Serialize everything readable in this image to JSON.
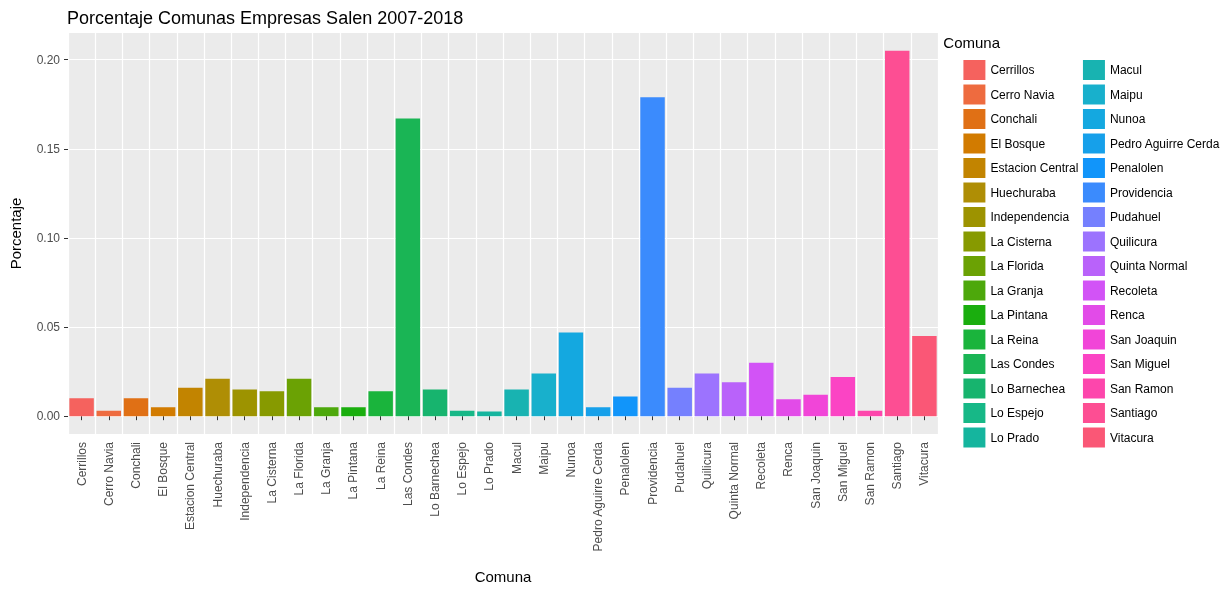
{
  "chart_data": {
    "type": "bar",
    "title": "Porcentaje Comunas Empresas Salen 2007-2018",
    "xlabel": "Comuna",
    "ylabel": "Porcentaje",
    "legend_title": "Comuna",
    "categories": [
      "Cerrillos",
      "Cerro Navia",
      "Conchali",
      "El Bosque",
      "Estacion Central",
      "Huechuraba",
      "Independencia",
      "La Cisterna",
      "La Florida",
      "La Granja",
      "La Pintana",
      "La Reina",
      "Las Condes",
      "Lo Barnechea",
      "Lo Espejo",
      "Lo Prado",
      "Macul",
      "Maipu",
      "Nunoa",
      "Pedro Aguirre Cerda",
      "Penalolen",
      "Providencia",
      "Pudahuel",
      "Quilicura",
      "Quinta Normal",
      "Recoleta",
      "Renca",
      "San Joaquin",
      "San Miguel",
      "San Ramon",
      "Santiago",
      "Vitacura"
    ],
    "stacked": true,
    "series": [
      {
        "name": "Cerrillos",
        "color": "#f5625e",
        "values": [
          0.01,
          null,
          null,
          null,
          null,
          null,
          null,
          null,
          null,
          null,
          null,
          null,
          null,
          null,
          null,
          null,
          null,
          null,
          null,
          null,
          null,
          null,
          null,
          null,
          null,
          null,
          null,
          null,
          null,
          null,
          null,
          null
        ]
      },
      {
        "name": "Cerro Navia",
        "color": "#ee6b3f",
        "values": [
          null,
          0.003,
          null,
          null,
          null,
          null,
          null,
          null,
          null,
          null,
          null,
          null,
          null,
          null,
          null,
          null,
          null,
          null,
          null,
          null,
          null,
          null,
          null,
          null,
          null,
          null,
          null,
          null,
          null,
          null,
          null,
          null
        ]
      },
      {
        "name": "Conchali",
        "color": "#e07015",
        "values": [
          null,
          null,
          0.01,
          null,
          null,
          null,
          null,
          null,
          null,
          null,
          null,
          null,
          null,
          null,
          null,
          null,
          null,
          null,
          null,
          null,
          null,
          null,
          null,
          null,
          null,
          null,
          null,
          null,
          null,
          null,
          null,
          null
        ]
      },
      {
        "name": "El Bosque",
        "color": "#d27b00",
        "values": [
          null,
          null,
          null,
          0.005,
          null,
          null,
          null,
          null,
          null,
          null,
          null,
          null,
          null,
          null,
          null,
          null,
          null,
          null,
          null,
          null,
          null,
          null,
          null,
          null,
          null,
          null,
          null,
          null,
          null,
          null,
          null,
          null
        ]
      },
      {
        "name": "Estacion Central",
        "color": "#c28400",
        "values": [
          null,
          null,
          null,
          null,
          0.016,
          null,
          null,
          null,
          null,
          null,
          null,
          null,
          null,
          null,
          null,
          null,
          null,
          null,
          null,
          null,
          null,
          null,
          null,
          null,
          null,
          null,
          null,
          null,
          null,
          null,
          null,
          null
        ]
      },
      {
        "name": "Huechuraba",
        "color": "#af8e05",
        "values": [
          null,
          null,
          null,
          null,
          null,
          0.021,
          null,
          null,
          null,
          null,
          null,
          null,
          null,
          null,
          null,
          null,
          null,
          null,
          null,
          null,
          null,
          null,
          null,
          null,
          null,
          null,
          null,
          null,
          null,
          null,
          null,
          null
        ]
      },
      {
        "name": "Independencia",
        "color": "#9d9300",
        "values": [
          null,
          null,
          null,
          null,
          null,
          null,
          0.015,
          null,
          null,
          null,
          null,
          null,
          null,
          null,
          null,
          null,
          null,
          null,
          null,
          null,
          null,
          null,
          null,
          null,
          null,
          null,
          null,
          null,
          null,
          null,
          null,
          null
        ]
      },
      {
        "name": "La Cisterna",
        "color": "#879a00",
        "values": [
          null,
          null,
          null,
          null,
          null,
          null,
          null,
          0.014,
          null,
          null,
          null,
          null,
          null,
          null,
          null,
          null,
          null,
          null,
          null,
          null,
          null,
          null,
          null,
          null,
          null,
          null,
          null,
          null,
          null,
          null,
          null,
          null
        ]
      },
      {
        "name": "La Florida",
        "color": "#6ba204",
        "values": [
          null,
          null,
          null,
          null,
          null,
          null,
          null,
          null,
          0.021,
          null,
          null,
          null,
          null,
          null,
          null,
          null,
          null,
          null,
          null,
          null,
          null,
          null,
          null,
          null,
          null,
          null,
          null,
          null,
          null,
          null,
          null,
          null
        ]
      },
      {
        "name": "La Granja",
        "color": "#4da80b",
        "values": [
          null,
          null,
          null,
          null,
          null,
          null,
          null,
          null,
          null,
          0.005,
          null,
          null,
          null,
          null,
          null,
          null,
          null,
          null,
          null,
          null,
          null,
          null,
          null,
          null,
          null,
          null,
          null,
          null,
          null,
          null,
          null,
          null
        ]
      },
      {
        "name": "La Pintana",
        "color": "#1aae0e",
        "values": [
          null,
          null,
          null,
          null,
          null,
          null,
          null,
          null,
          null,
          null,
          0.005,
          null,
          null,
          null,
          null,
          null,
          null,
          null,
          null,
          null,
          null,
          null,
          null,
          null,
          null,
          null,
          null,
          null,
          null,
          null,
          null,
          null
        ]
      },
      {
        "name": "La Reina",
        "color": "#1ab43c",
        "values": [
          null,
          null,
          null,
          null,
          null,
          null,
          null,
          null,
          null,
          null,
          null,
          0.014,
          null,
          null,
          null,
          null,
          null,
          null,
          null,
          null,
          null,
          null,
          null,
          null,
          null,
          null,
          null,
          null,
          null,
          null,
          null,
          null
        ]
      },
      {
        "name": "Las Condes",
        "color": "#1ab555",
        "values": [
          null,
          null,
          null,
          null,
          null,
          null,
          null,
          null,
          null,
          null,
          null,
          null,
          0.167,
          null,
          null,
          null,
          null,
          null,
          null,
          null,
          null,
          null,
          null,
          null,
          null,
          null,
          null,
          null,
          null,
          null,
          null,
          null
        ]
      },
      {
        "name": "Lo Barnechea",
        "color": "#17b46e",
        "values": [
          null,
          null,
          null,
          null,
          null,
          null,
          null,
          null,
          null,
          null,
          null,
          null,
          null,
          0.015,
          null,
          null,
          null,
          null,
          null,
          null,
          null,
          null,
          null,
          null,
          null,
          null,
          null,
          null,
          null,
          null,
          null,
          null
        ]
      },
      {
        "name": "Lo Espejo",
        "color": "#17b887",
        "values": [
          null,
          null,
          null,
          null,
          null,
          null,
          null,
          null,
          null,
          null,
          null,
          null,
          null,
          null,
          0.003,
          null,
          null,
          null,
          null,
          null,
          null,
          null,
          null,
          null,
          null,
          null,
          null,
          null,
          null,
          null,
          null,
          null
        ]
      },
      {
        "name": "Lo Prado",
        "color": "#15b59e",
        "values": [
          null,
          null,
          null,
          null,
          null,
          null,
          null,
          null,
          null,
          null,
          null,
          null,
          null,
          null,
          null,
          0.0026,
          null,
          null,
          null,
          null,
          null,
          null,
          null,
          null,
          null,
          null,
          null,
          null,
          null,
          null,
          null,
          null
        ]
      },
      {
        "name": "Macul",
        "color": "#18b3b1",
        "values": [
          null,
          null,
          null,
          null,
          null,
          null,
          null,
          null,
          null,
          null,
          null,
          null,
          null,
          null,
          null,
          null,
          0.015,
          null,
          null,
          null,
          null,
          null,
          null,
          null,
          null,
          null,
          null,
          null,
          null,
          null,
          null,
          null
        ]
      },
      {
        "name": "Maipu",
        "color": "#18b0cc",
        "values": [
          null,
          null,
          null,
          null,
          null,
          null,
          null,
          null,
          null,
          null,
          null,
          null,
          null,
          null,
          null,
          null,
          null,
          0.024,
          null,
          null,
          null,
          null,
          null,
          null,
          null,
          null,
          null,
          null,
          null,
          null,
          null,
          null
        ]
      },
      {
        "name": "Nunoa",
        "color": "#14a8e0",
        "values": [
          null,
          null,
          null,
          null,
          null,
          null,
          null,
          null,
          null,
          null,
          null,
          null,
          null,
          null,
          null,
          null,
          null,
          null,
          0.047,
          null,
          null,
          null,
          null,
          null,
          null,
          null,
          null,
          null,
          null,
          null,
          null,
          null
        ]
      },
      {
        "name": "Pedro Aguirre Cerda",
        "color": "#16a0ea",
        "values": [
          null,
          null,
          null,
          null,
          null,
          null,
          null,
          null,
          null,
          null,
          null,
          null,
          null,
          null,
          null,
          null,
          null,
          null,
          null,
          0.005,
          null,
          null,
          null,
          null,
          null,
          null,
          null,
          null,
          null,
          null,
          null,
          null
        ]
      },
      {
        "name": "Penalolen",
        "color": "#1195fa",
        "values": [
          null,
          null,
          null,
          null,
          null,
          null,
          null,
          null,
          null,
          null,
          null,
          null,
          null,
          null,
          null,
          null,
          null,
          null,
          null,
          null,
          0.011,
          null,
          null,
          null,
          null,
          null,
          null,
          null,
          null,
          null,
          null,
          null
        ]
      },
      {
        "name": "Providencia",
        "color": "#3b8bfd",
        "values": [
          null,
          null,
          null,
          null,
          null,
          null,
          null,
          null,
          null,
          null,
          null,
          null,
          null,
          null,
          null,
          null,
          null,
          null,
          null,
          null,
          null,
          0.179,
          null,
          null,
          null,
          null,
          null,
          null,
          null,
          null,
          null,
          null
        ]
      },
      {
        "name": "Pudahuel",
        "color": "#7580fe",
        "values": [
          null,
          null,
          null,
          null,
          null,
          null,
          null,
          null,
          null,
          null,
          null,
          null,
          null,
          null,
          null,
          null,
          null,
          null,
          null,
          null,
          null,
          null,
          0.016,
          null,
          null,
          null,
          null,
          null,
          null,
          null,
          null,
          null
        ]
      },
      {
        "name": "Quilicura",
        "color": "#9c73fe",
        "values": [
          null,
          null,
          null,
          null,
          null,
          null,
          null,
          null,
          null,
          null,
          null,
          null,
          null,
          null,
          null,
          null,
          null,
          null,
          null,
          null,
          null,
          null,
          null,
          0.024,
          null,
          null,
          null,
          null,
          null,
          null,
          null,
          null
        ]
      },
      {
        "name": "Quinta Normal",
        "color": "#b962fa",
        "values": [
          null,
          null,
          null,
          null,
          null,
          null,
          null,
          null,
          null,
          null,
          null,
          null,
          null,
          null,
          null,
          null,
          null,
          null,
          null,
          null,
          null,
          null,
          null,
          null,
          0.019,
          null,
          null,
          null,
          null,
          null,
          null,
          null
        ]
      },
      {
        "name": "Recoleta",
        "color": "#d253f6",
        "values": [
          null,
          null,
          null,
          null,
          null,
          null,
          null,
          null,
          null,
          null,
          null,
          null,
          null,
          null,
          null,
          null,
          null,
          null,
          null,
          null,
          null,
          null,
          null,
          null,
          null,
          0.03,
          null,
          null,
          null,
          null,
          null,
          null
        ]
      },
      {
        "name": "Renca",
        "color": "#e24be8",
        "values": [
          null,
          null,
          null,
          null,
          null,
          null,
          null,
          null,
          null,
          null,
          null,
          null,
          null,
          null,
          null,
          null,
          null,
          null,
          null,
          null,
          null,
          null,
          null,
          null,
          null,
          null,
          0.0095,
          null,
          null,
          null,
          null,
          null
        ]
      },
      {
        "name": "San Joaquin",
        "color": "#f145d8",
        "values": [
          null,
          null,
          null,
          null,
          null,
          null,
          null,
          null,
          null,
          null,
          null,
          null,
          null,
          null,
          null,
          null,
          null,
          null,
          null,
          null,
          null,
          null,
          null,
          null,
          null,
          null,
          null,
          0.012,
          null,
          null,
          null,
          null
        ]
      },
      {
        "name": "San Miguel",
        "color": "#fb44c4",
        "values": [
          null,
          null,
          null,
          null,
          null,
          null,
          null,
          null,
          null,
          null,
          null,
          null,
          null,
          null,
          null,
          null,
          null,
          null,
          null,
          null,
          null,
          null,
          null,
          null,
          null,
          null,
          null,
          null,
          0.022,
          null,
          null,
          null
        ]
      },
      {
        "name": "San Ramon",
        "color": "#fd46ac",
        "values": [
          null,
          null,
          null,
          null,
          null,
          null,
          null,
          null,
          null,
          null,
          null,
          null,
          null,
          null,
          null,
          null,
          null,
          null,
          null,
          null,
          null,
          null,
          null,
          null,
          null,
          null,
          null,
          null,
          null,
          0.003,
          null,
          null
        ]
      },
      {
        "name": "Santiago",
        "color": "#fd4e93",
        "values": [
          null,
          null,
          null,
          null,
          null,
          null,
          null,
          null,
          null,
          null,
          null,
          null,
          null,
          null,
          null,
          null,
          null,
          null,
          null,
          null,
          null,
          null,
          null,
          null,
          null,
          null,
          null,
          null,
          null,
          null,
          0.205,
          null
        ]
      },
      {
        "name": "Vitacura",
        "color": "#fa5776",
        "values": [
          null,
          null,
          null,
          null,
          null,
          null,
          null,
          null,
          null,
          null,
          null,
          null,
          null,
          null,
          null,
          null,
          null,
          null,
          null,
          null,
          null,
          null,
          null,
          null,
          null,
          null,
          null,
          null,
          null,
          null,
          null,
          0.045
        ]
      }
    ],
    "ylim": [
      -0.01,
      0.215
    ],
    "yticks": [
      {
        "value": 0,
        "label": "0.00"
      },
      {
        "value": 0.05,
        "label": "0.05"
      },
      {
        "value": 0.1,
        "label": "0.10"
      },
      {
        "value": 0.15,
        "label": "0.15"
      },
      {
        "value": 0.2,
        "label": "0.20"
      }
    ],
    "grid": true,
    "legend": "right"
  }
}
